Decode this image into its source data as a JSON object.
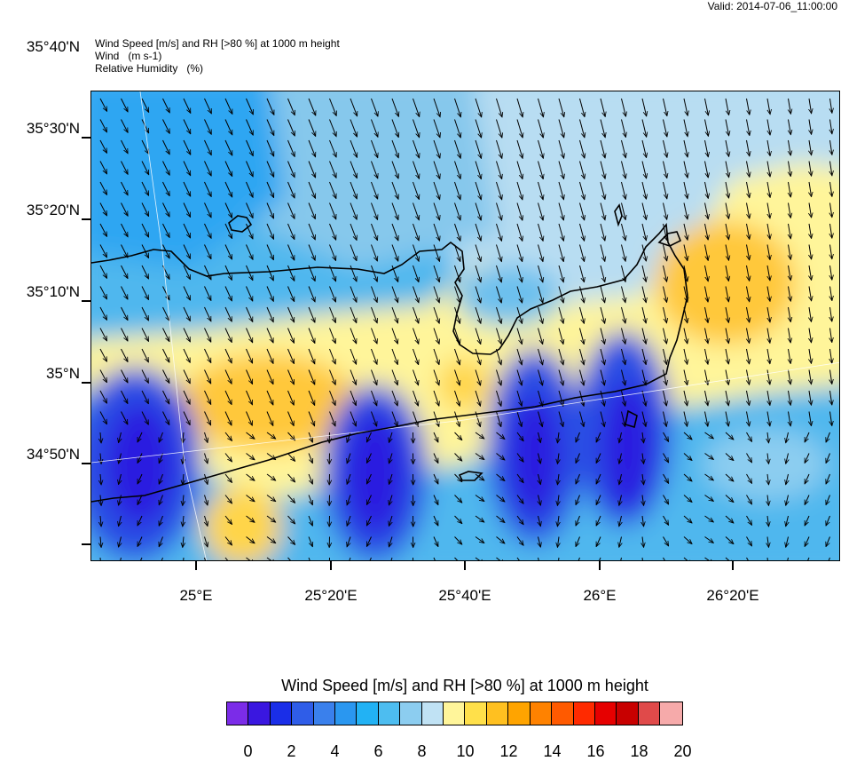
{
  "valid_time": "Valid: 2014-07-06_11:00:00",
  "header": {
    "line1": "Wind Speed [m/s] and RH [>80 %] at 1000 m height",
    "line2": "Wind   (m s-1)",
    "line3": "Relative Humidity   (%)"
  },
  "latitude_labels": [
    "35°40'N",
    "35°30'N",
    "35°20'N",
    "35°10'N",
    "35°N",
    "34°50'N"
  ],
  "longitude_labels": [
    "25°E",
    "25°20'E",
    "25°40'E",
    "26°E",
    "26°20'E"
  ],
  "colorbar": {
    "title": "Wind Speed [m/s] and RH [>80 %] at 1000 m height",
    "ticks": [
      "0",
      "2",
      "4",
      "6",
      "8",
      "10",
      "12",
      "14",
      "16",
      "18",
      "20"
    ],
    "colors": [
      "#7b2ce8",
      "#3a17e0",
      "#1a2ee8",
      "#2f5de8",
      "#3a80ec",
      "#2a97f0",
      "#22b2f4",
      "#4dbdf0",
      "#8ccdf0",
      "#c0e2f4",
      "#fff59a",
      "#ffe04a",
      "#ffc020",
      "#ffa400",
      "#ff8200",
      "#ff5a00",
      "#ff2a00",
      "#e60000",
      "#c80000",
      "#e04a4a",
      "#f6aaaa"
    ]
  },
  "map_colors": {
    "calm_deep": "#2b1ee0",
    "calm": "#2f55e6",
    "light": "#22b2f4",
    "moderate": "#8ccdf0",
    "pale": "#c0e2f4",
    "yellow": "#fff59a",
    "orange_light": "#ffd54a",
    "orange": "#ffc020",
    "coast": "#000000"
  }
}
